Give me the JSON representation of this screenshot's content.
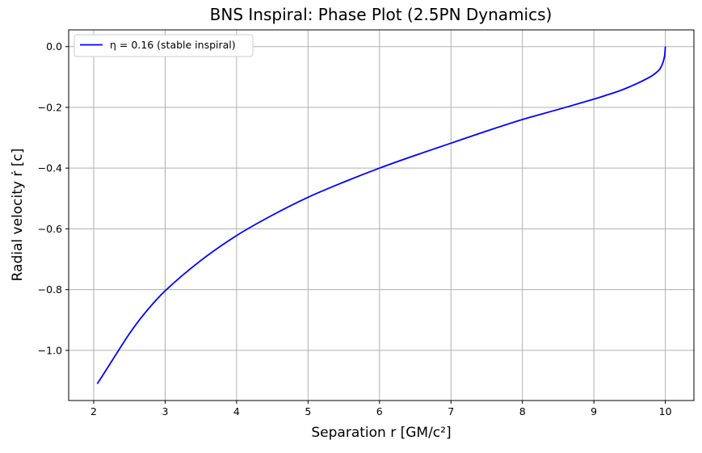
{
  "chart_data": {
    "type": "line",
    "title": "BNS Inspiral: Phase Plot (2.5PN Dynamics)",
    "xlabel": "Separation r [GM/c²]",
    "ylabel": "Radial velocity ṙ [c]",
    "xlim": [
      1.65,
      10.4
    ],
    "ylim": [
      -1.165,
      0.055
    ],
    "xticks": [
      2,
      3,
      4,
      5,
      6,
      7,
      8,
      9,
      10
    ],
    "yticks": [
      0.0,
      -0.2,
      -0.4,
      -0.6,
      -0.8,
      -1.0
    ],
    "xtick_labels": [
      "2",
      "3",
      "4",
      "5",
      "6",
      "7",
      "8",
      "9",
      "10"
    ],
    "ytick_labels": [
      "0.0",
      "−0.2",
      "−0.4",
      "−0.6",
      "−0.8",
      "−1.0"
    ],
    "grid": true,
    "legend_position": "top-left",
    "series": [
      {
        "name": "η = 0.16 (stable inspiral)",
        "color": "#0000ff",
        "x": [
          10.0,
          9.995,
          9.99,
          9.97,
          9.94,
          9.9,
          9.8,
          9.6,
          9.4,
          9.2,
          9.0,
          8.5,
          8.0,
          7.5,
          7.0,
          6.5,
          6.0,
          5.5,
          5.0,
          4.5,
          4.0,
          3.5,
          3.0,
          2.7,
          2.5,
          2.3,
          2.2,
          2.1,
          2.05
        ],
        "y": [
          0.0,
          -0.018,
          -0.03,
          -0.05,
          -0.067,
          -0.08,
          -0.098,
          -0.122,
          -0.142,
          -0.158,
          -0.173,
          -0.207,
          -0.24,
          -0.278,
          -0.318,
          -0.358,
          -0.4,
          -0.446,
          -0.496,
          -0.555,
          -0.622,
          -0.704,
          -0.804,
          -0.882,
          -0.945,
          -1.018,
          -1.055,
          -1.092,
          -1.11
        ]
      }
    ]
  }
}
